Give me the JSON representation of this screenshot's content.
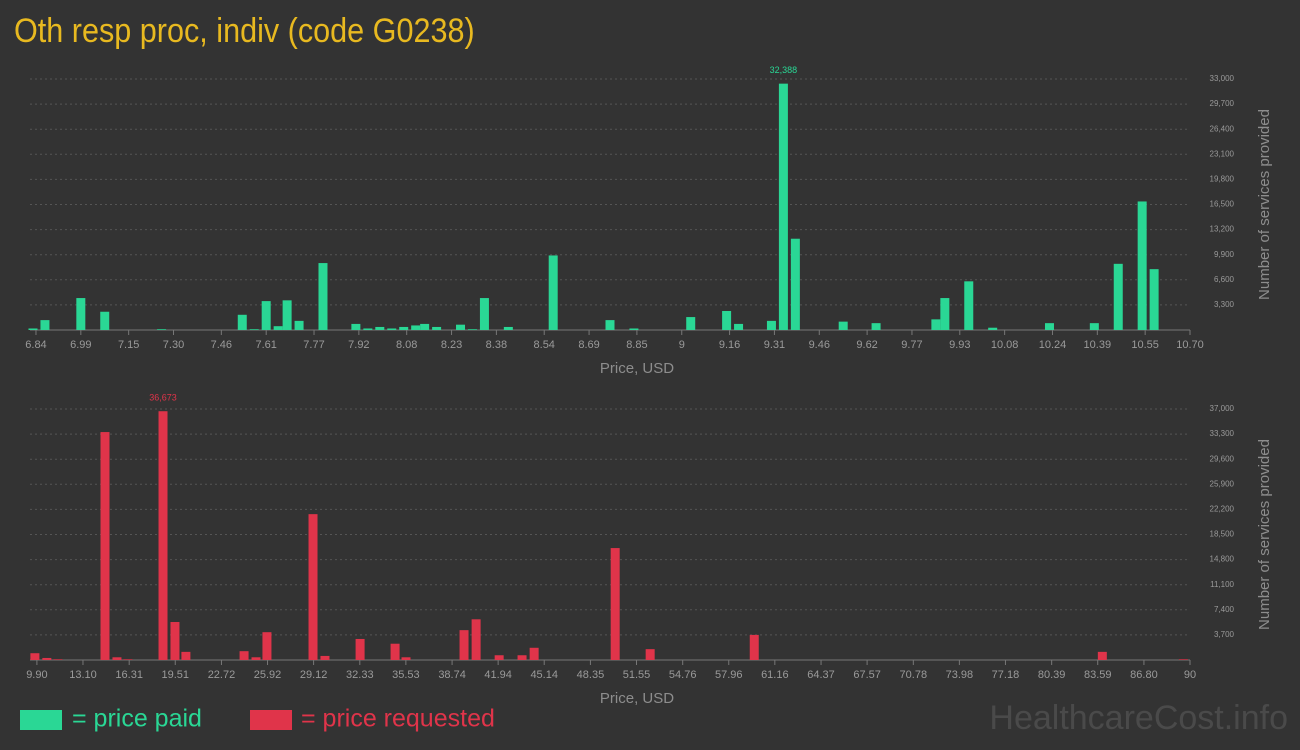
{
  "title": "Oth resp proc, indiv (code G0238)",
  "watermark": "HealthcareCost.info",
  "chart_data": [
    {
      "type": "bar",
      "x_label": "Price, USD",
      "y_label": "Number of services provided",
      "xlim": [
        6.82,
        10.7
      ],
      "xticks": [
        6.84,
        6.99,
        7.15,
        {
          "value": 7.3,
          "label": "7.30"
        },
        7.46,
        7.61,
        7.77,
        7.92,
        8.08,
        8.23,
        8.38,
        8.54,
        8.69,
        8.85,
        9,
        9.16,
        9.31,
        9.46,
        9.62,
        9.77,
        9.93,
        10.08,
        10.24,
        10.39,
        10.55,
        {
          "value": 10.7,
          "label": "10.70"
        }
      ],
      "ylim": [
        0,
        33000
      ],
      "yticks": [
        {
          "value": 3300,
          "label": "3,300"
        },
        {
          "value": 6600,
          "label": "6,600"
        },
        {
          "value": 9900,
          "label": "9,900"
        },
        {
          "value": 13200,
          "label": "13,200"
        },
        {
          "value": 16500,
          "label": "16,500"
        },
        {
          "value": 19800,
          "label": "19,800"
        },
        {
          "value": 23100,
          "label": "23,100"
        },
        {
          "value": 26400,
          "label": "26,400"
        },
        {
          "value": 29700,
          "label": "29,700"
        },
        {
          "value": 33000,
          "label": "33,000"
        }
      ],
      "grid": true,
      "series": [
        {
          "name": "= price paid",
          "color": "#2ad795",
          "x": [
            6.83,
            6.87,
            6.99,
            7.07,
            7.26,
            7.53,
            7.57,
            7.61,
            7.65,
            7.68,
            7.72,
            7.8,
            7.91,
            7.95,
            7.99,
            8.03,
            8.07,
            8.11,
            8.14,
            8.18,
            8.26,
            8.3,
            8.34,
            8.42,
            8.57,
            8.76,
            8.84,
            9.03,
            9.15,
            9.19,
            9.3,
            9.34,
            9.38,
            9.54,
            9.65,
            9.85,
            9.88,
            9.96,
            10.04,
            10.23,
            10.38,
            10.46,
            10.54,
            10.58
          ],
          "values": [
            200,
            1300,
            4200,
            2400,
            100,
            2000,
            100,
            3800,
            500,
            3900,
            1200,
            8800,
            800,
            200,
            400,
            200,
            400,
            600,
            800,
            400,
            700,
            100,
            4200,
            400,
            9800,
            1300,
            200,
            1700,
            2500,
            800,
            1200,
            32388,
            12000,
            1100,
            900,
            1400,
            4200,
            6400,
            300,
            900,
            900,
            8700,
            16900,
            8000
          ],
          "value_labels": [
            null,
            null,
            null,
            null,
            null,
            null,
            null,
            null,
            null,
            null,
            null,
            null,
            null,
            null,
            null,
            null,
            null,
            null,
            null,
            null,
            null,
            null,
            null,
            null,
            null,
            null,
            null,
            null,
            null,
            null,
            null,
            "32,388",
            null,
            null,
            null,
            null,
            null,
            null,
            null,
            null,
            null,
            null,
            null,
            null
          ]
        }
      ]
    },
    {
      "type": "bar",
      "x_label": "Price, USD",
      "y_label": "Number of services provided",
      "xlim": [
        9.42,
        90
      ],
      "xticks": [
        {
          "value": 9.9,
          "label": "9.90"
        },
        {
          "value": 13.1,
          "label": "13.10"
        },
        16.31,
        19.51,
        22.72,
        25.92,
        29.12,
        32.33,
        35.53,
        38.74,
        41.94,
        45.14,
        48.35,
        51.55,
        54.76,
        57.96,
        61.16,
        64.37,
        67.57,
        70.78,
        73.98,
        77.18,
        80.39,
        83.59,
        {
          "value": 86.8,
          "label": "86.80"
        },
        90
      ],
      "ylim": [
        0,
        37000
      ],
      "yticks": [
        {
          "value": 3700,
          "label": "3,700"
        },
        {
          "value": 7400,
          "label": "7,400"
        },
        {
          "value": 11100,
          "label": "11,100"
        },
        {
          "value": 14800,
          "label": "14,800"
        },
        {
          "value": 18500,
          "label": "18,500"
        },
        {
          "value": 22200,
          "label": "22,200"
        },
        {
          "value": 25900,
          "label": "25,900"
        },
        {
          "value": 29600,
          "label": "29,600"
        },
        {
          "value": 33300,
          "label": "33,300"
        },
        {
          "value": 37000,
          "label": "37,000"
        }
      ],
      "grid": true,
      "series": [
        {
          "name": "= price requested",
          "color": "#e0344a",
          "x": [
            9.76,
            10.59,
            11.36,
            14.63,
            15.46,
            16.22,
            18.66,
            19.49,
            20.25,
            24.29,
            25.12,
            25.88,
            29.08,
            29.91,
            32.35,
            34.78,
            35.54,
            39.57,
            40.41,
            42.01,
            43.6,
            44.44,
            50.07,
            52.5,
            59.73,
            83.91,
            89.54
          ],
          "values": [
            1000,
            300,
            100,
            33600,
            400,
            100,
            36673,
            5600,
            1200,
            1300,
            400,
            4100,
            21500,
            600,
            3100,
            2400,
            400,
            4400,
            6000,
            700,
            700,
            1800,
            16500,
            1600,
            3700,
            1200,
            100
          ],
          "value_labels": [
            null,
            null,
            null,
            null,
            null,
            null,
            "36,673",
            null,
            null,
            null,
            null,
            null,
            null,
            null,
            null,
            null,
            null,
            null,
            null,
            null,
            null,
            null,
            null,
            null,
            null,
            null,
            null
          ]
        }
      ]
    }
  ]
}
